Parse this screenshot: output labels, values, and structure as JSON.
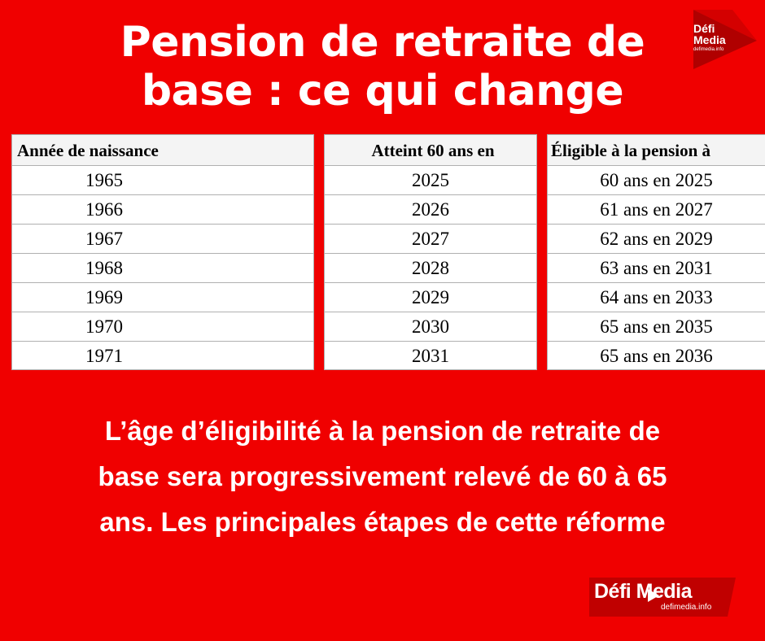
{
  "title": {
    "line1": "Pension de retraite de",
    "line2": "base : ce qui change"
  },
  "logo": {
    "brand": "Défi Media",
    "brand_top_line1": "Défi",
    "brand_top_line2": "Media",
    "url": "defimedia.info",
    "accent": "#e00000"
  },
  "tables": {
    "birth": {
      "header": "Année de naissance",
      "rows": [
        "1965",
        "1966",
        "1967",
        "1968",
        "1969",
        "1970",
        "1971"
      ]
    },
    "reach60": {
      "header": "Atteint 60 ans en",
      "rows": [
        "2025",
        "2026",
        "2027",
        "2028",
        "2029",
        "2030",
        "2031"
      ]
    },
    "eligible": {
      "header": "Éligible à la pension à",
      "rows": [
        "60 ans en 2025",
        "61 ans en 2027",
        "62 ans en 2029",
        "63 ans en 2031",
        "64 ans en 2033",
        "65 ans en 2035",
        "65 ans en 2036"
      ]
    }
  },
  "description": {
    "line1": "L’âge d’éligibilité à la pension de retraite de",
    "line2": "base sera progressivement relevé de 60 à 65",
    "line3": "ans. Les principales étapes de cette réforme"
  },
  "colors": {
    "background": "#f00000",
    "text": "#ffffff"
  }
}
